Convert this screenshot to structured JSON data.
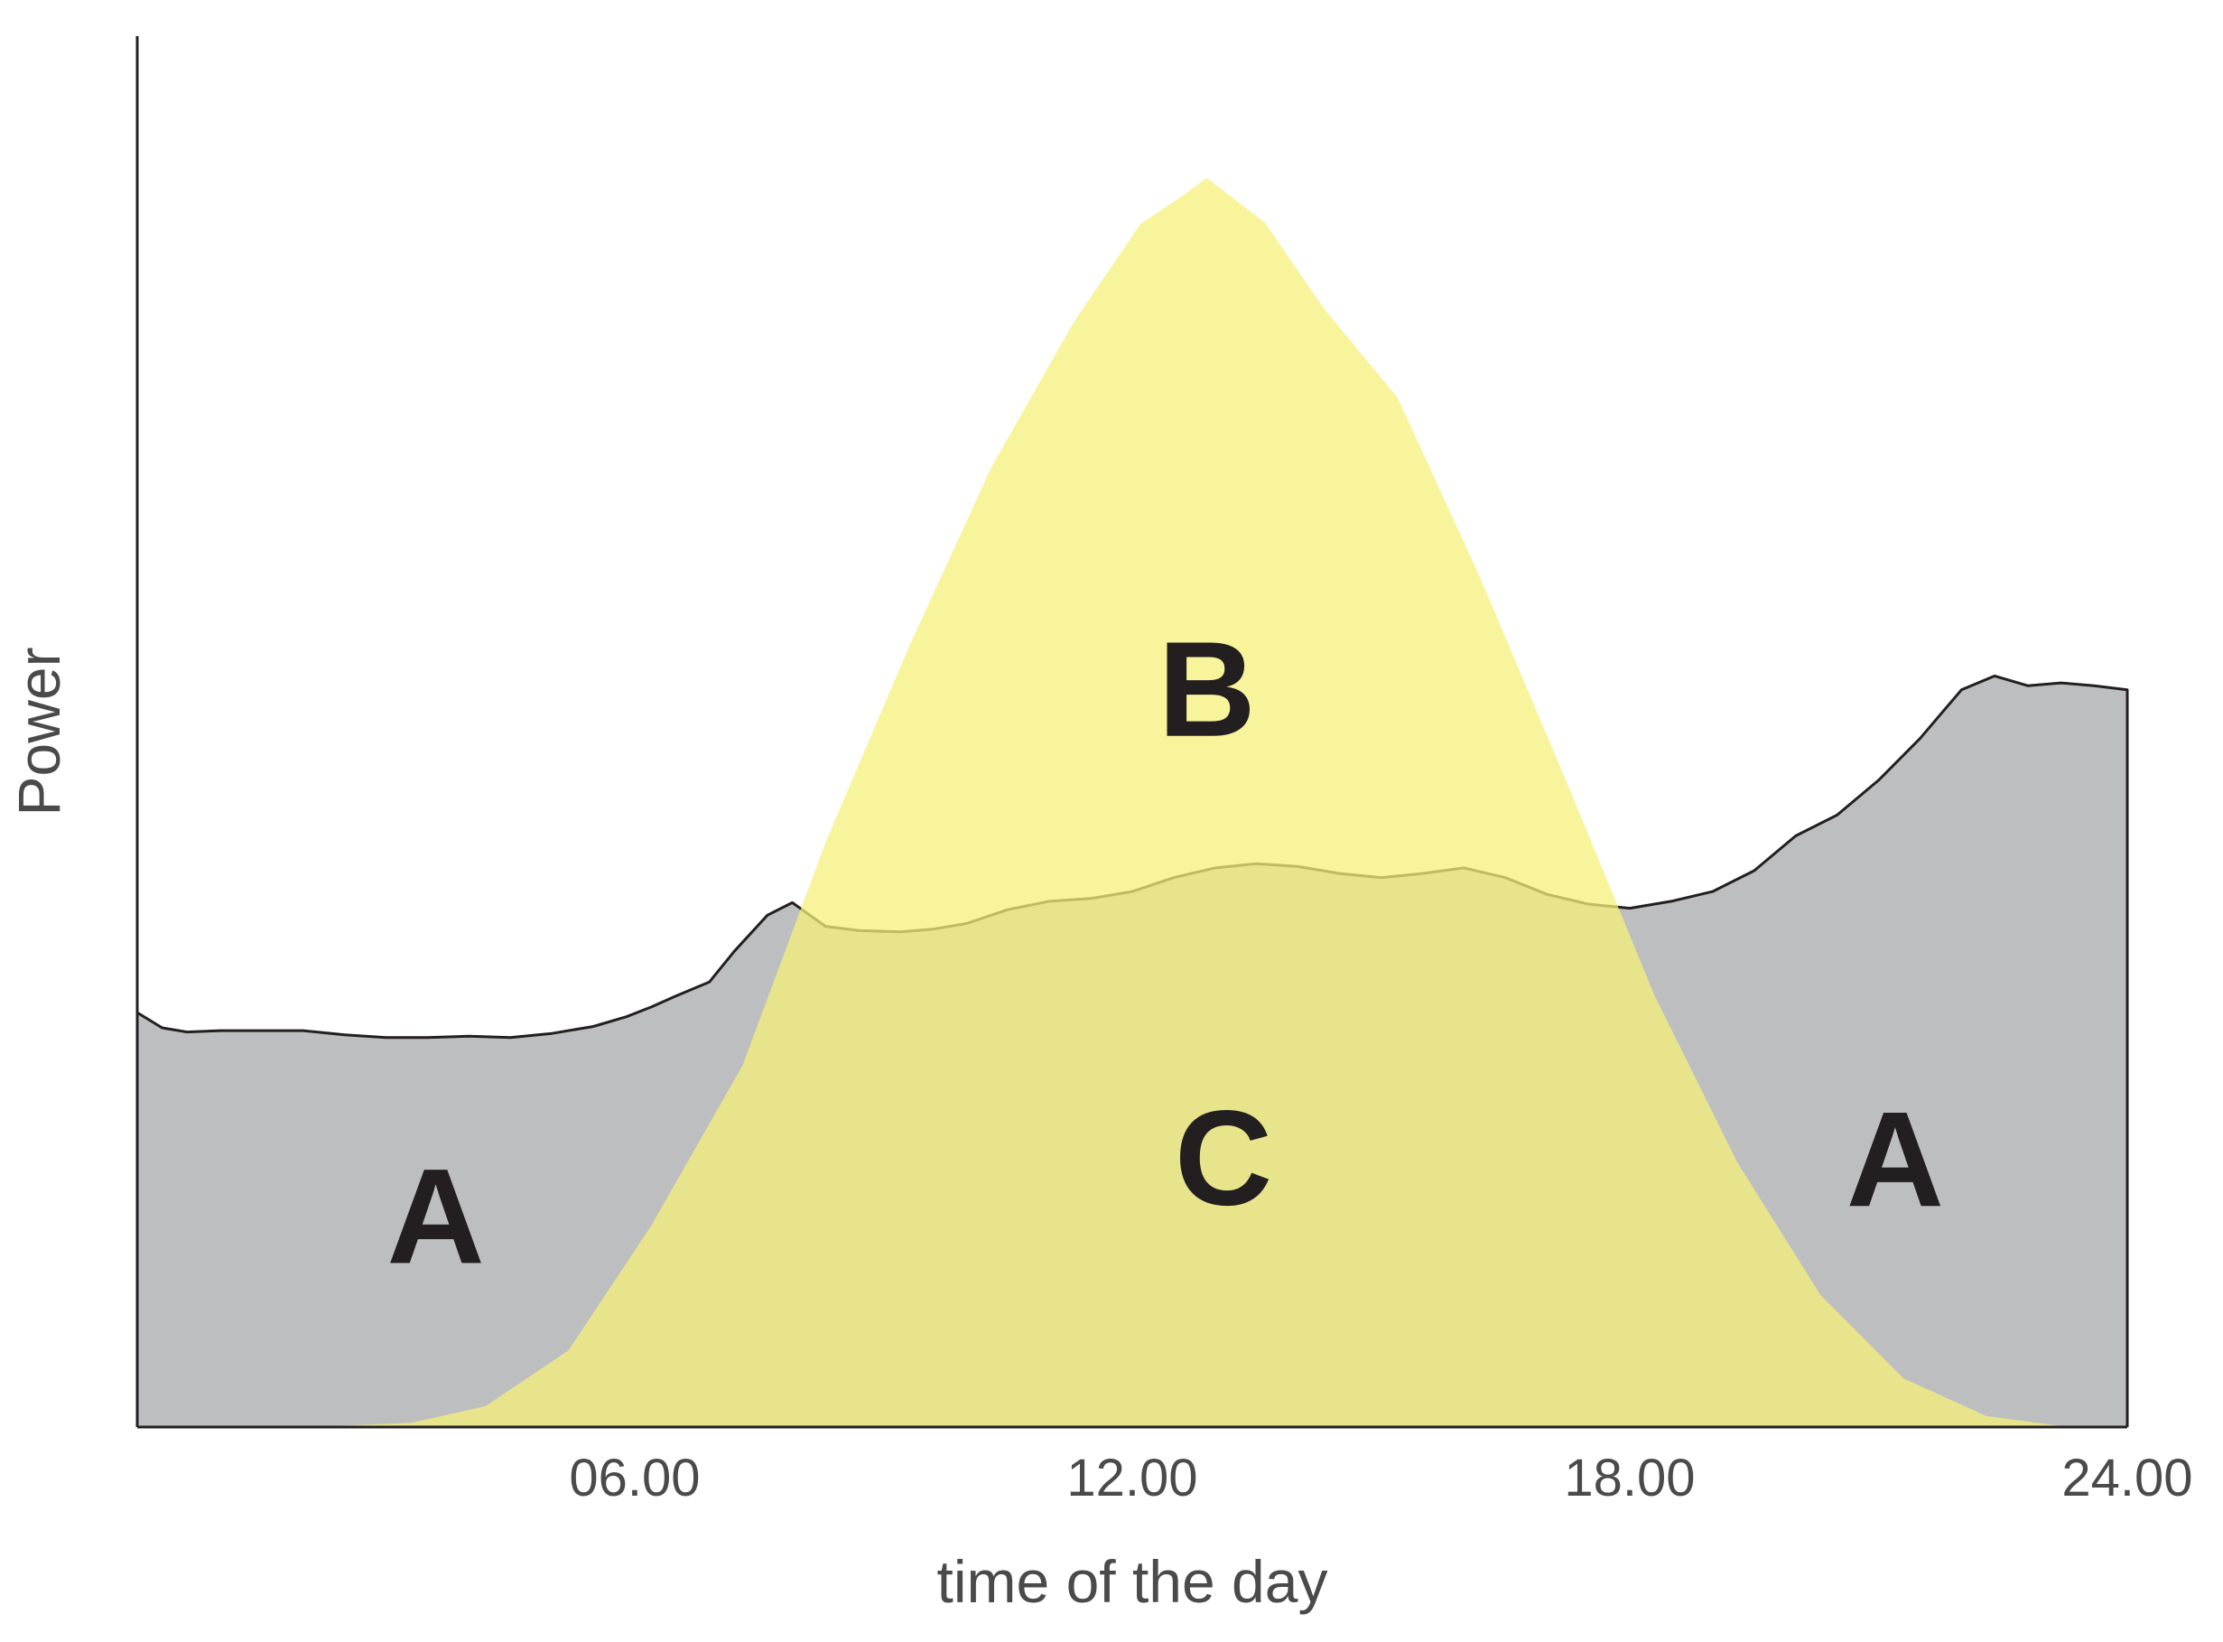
{
  "chart_data": {
    "type": "area",
    "title": "",
    "xlabel": "time of the day",
    "ylabel": "Power",
    "xlim": [
      0,
      24
    ],
    "ylim": [
      0,
      100
    ],
    "x_ticks": [
      {
        "value": 6,
        "label": "06.00"
      },
      {
        "value": 12,
        "label": "12.00"
      },
      {
        "value": 18,
        "label": "18.00"
      },
      {
        "value": 24,
        "label": "24.00"
      }
    ],
    "y_ticks_shown": false,
    "grid": false,
    "series": [
      {
        "color": "#bdbec0",
        "line_color": "#231f20",
        "points": [
          [
            0.0,
            29.8
          ],
          [
            0.3,
            28.7
          ],
          [
            0.6,
            28.4
          ],
          [
            1.0,
            28.5
          ],
          [
            1.5,
            28.5
          ],
          [
            2.0,
            28.5
          ],
          [
            2.5,
            28.2
          ],
          [
            3.0,
            28.0
          ],
          [
            3.5,
            28.0
          ],
          [
            4.0,
            28.1
          ],
          [
            4.5,
            28.0
          ],
          [
            5.0,
            28.3
          ],
          [
            5.5,
            28.8
          ],
          [
            5.9,
            29.5
          ],
          [
            6.2,
            30.2
          ],
          [
            6.5,
            31.0
          ],
          [
            6.9,
            32.0
          ],
          [
            7.2,
            34.2
          ],
          [
            7.6,
            36.8
          ],
          [
            7.9,
            37.7
          ],
          [
            8.3,
            36.0
          ],
          [
            8.7,
            35.7
          ],
          [
            9.2,
            35.6
          ],
          [
            9.6,
            35.8
          ],
          [
            10.0,
            36.2
          ],
          [
            10.5,
            37.2
          ],
          [
            11.0,
            37.8
          ],
          [
            11.5,
            38.0
          ],
          [
            12.0,
            38.5
          ],
          [
            12.5,
            39.5
          ],
          [
            13.0,
            40.2
          ],
          [
            13.5,
            40.5
          ],
          [
            14.0,
            40.3
          ],
          [
            14.5,
            39.8
          ],
          [
            15.0,
            39.5
          ],
          [
            15.5,
            39.8
          ],
          [
            16.0,
            40.2
          ],
          [
            16.5,
            39.5
          ],
          [
            17.0,
            38.3
          ],
          [
            17.5,
            37.6
          ],
          [
            18.0,
            37.3
          ],
          [
            18.5,
            37.8
          ],
          [
            19.0,
            38.5
          ],
          [
            19.5,
            40.0
          ],
          [
            20.0,
            42.5
          ],
          [
            20.5,
            44.0
          ],
          [
            21.0,
            46.5
          ],
          [
            21.5,
            49.5
          ],
          [
            22.0,
            53.0
          ],
          [
            22.4,
            54.0
          ],
          [
            22.8,
            53.3
          ],
          [
            23.2,
            53.5
          ],
          [
            23.6,
            53.3
          ],
          [
            24.0,
            53.0
          ]
        ]
      },
      {
        "color": "#f5f07a",
        "line_color": "",
        "points": [
          [
            0.0,
            0.0
          ],
          [
            2.0,
            0.0
          ],
          [
            3.3,
            0.3
          ],
          [
            4.2,
            1.5
          ],
          [
            5.2,
            5.5
          ],
          [
            6.2,
            14.5
          ],
          [
            7.3,
            26.0
          ],
          [
            8.3,
            42.0
          ],
          [
            9.3,
            56.0
          ],
          [
            10.3,
            69.0
          ],
          [
            11.3,
            79.5
          ],
          [
            12.1,
            86.5
          ],
          [
            12.6,
            88.5
          ],
          [
            12.9,
            89.8
          ],
          [
            13.6,
            86.6
          ],
          [
            14.3,
            80.5
          ],
          [
            15.2,
            74.0
          ],
          [
            16.2,
            61.0
          ],
          [
            17.3,
            45.5
          ],
          [
            18.3,
            31.0
          ],
          [
            19.3,
            19.0
          ],
          [
            20.3,
            9.5
          ],
          [
            21.3,
            3.5
          ],
          [
            22.3,
            0.8
          ],
          [
            23.3,
            0.0
          ],
          [
            24.0,
            0.0
          ]
        ]
      }
    ],
    "annotations": [
      {
        "text": "A",
        "x": 3.6,
        "y": 15.3
      },
      {
        "text": "B",
        "x": 12.9,
        "y": 53.2
      },
      {
        "text": "C",
        "x": 13.1,
        "y": 19.5
      },
      {
        "text": "A",
        "x": 21.2,
        "y": 19.4
      }
    ]
  }
}
